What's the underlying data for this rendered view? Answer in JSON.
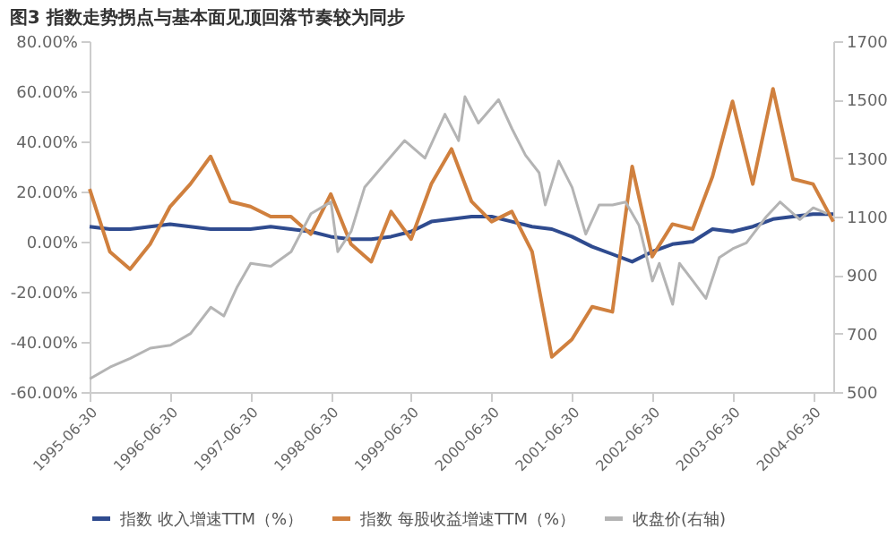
{
  "chart_data": {
    "type": "line",
    "title": "图3 指数走势拐点与基本面见顶回落节奏较为同步",
    "x": [
      "1995-06-30",
      "1995-09-30",
      "1995-12-31",
      "1996-03-31",
      "1996-06-30",
      "1996-09-30",
      "1996-12-31",
      "1997-03-31",
      "1997-06-30",
      "1997-09-30",
      "1997-12-31",
      "1998-03-31",
      "1998-06-30",
      "1998-09-30",
      "1998-12-31",
      "1999-03-31",
      "1999-06-30",
      "1999-09-30",
      "1999-12-31",
      "2000-03-31",
      "2000-06-30",
      "2000-09-30",
      "2000-12-31",
      "2001-03-31",
      "2001-06-30",
      "2001-09-30",
      "2001-12-31",
      "2002-03-31",
      "2002-06-30",
      "2002-09-30",
      "2002-12-31",
      "2003-03-31",
      "2003-06-30",
      "2003-09-30",
      "2003-12-31",
      "2004-03-31",
      "2004-06-30",
      "2004-09-30"
    ],
    "series": [
      {
        "name": "指数 收入增速TTM（%）",
        "color": "#2f4b8f",
        "values": [
          6,
          5,
          5,
          6,
          7,
          6,
          5,
          5,
          5,
          6,
          5,
          4,
          2,
          1,
          1,
          2,
          4,
          8,
          9,
          10,
          10,
          8,
          6,
          5,
          2,
          -2,
          -5,
          -8,
          -4,
          -1,
          0,
          5,
          4,
          6,
          9,
          10,
          11,
          11
        ]
      },
      {
        "name": "指数 每股收益增速TTM（%）",
        "color": "#d0803e",
        "values": [
          21,
          -4,
          -11,
          -1,
          14,
          23,
          34,
          16,
          14,
          10,
          10,
          3,
          19,
          -1,
          -8,
          12,
          1,
          23,
          37,
          16,
          8,
          12,
          -4,
          -46,
          -39,
          -26,
          -28,
          30,
          -6,
          7,
          5,
          26,
          56,
          23,
          61,
          25,
          23,
          8
        ]
      },
      {
        "name": "收盘价(右轴)",
        "color": "#b4b4b4",
        "axis": "y2",
        "x": [
          "1995-07",
          "1995-10",
          "1996-01",
          "1996-04",
          "1996-07",
          "1996-10",
          "1997-01",
          "1997-03",
          "1997-05",
          "1997-07",
          "1997-10",
          "1998-01",
          "1998-04",
          "1998-07",
          "1998-08",
          "1998-10",
          "1998-12",
          "1999-03",
          "1999-06",
          "1999-09",
          "1999-12",
          "2000-02",
          "2000-03",
          "2000-05",
          "2000-08",
          "2000-10",
          "2000-12",
          "2001-02",
          "2001-03",
          "2001-05",
          "2001-07",
          "2001-09",
          "2001-11",
          "2002-01",
          "2002-03",
          "2002-05",
          "2002-07",
          "2002-08",
          "2002-10",
          "2002-11",
          "2003-01",
          "2003-03",
          "2003-05",
          "2003-07",
          "2003-09",
          "2003-12",
          "2004-02",
          "2004-05",
          "2004-07",
          "2004-09"
        ],
        "values": [
          545,
          585,
          615,
          650,
          660,
          700,
          790,
          760,
          860,
          940,
          930,
          980,
          1110,
          1150,
          980,
          1050,
          1200,
          1280,
          1360,
          1300,
          1450,
          1360,
          1510,
          1420,
          1500,
          1400,
          1310,
          1250,
          1140,
          1290,
          1200,
          1040,
          1140,
          1140,
          1150,
          1070,
          880,
          940,
          800,
          940,
          880,
          820,
          960,
          990,
          1010,
          1100,
          1150,
          1090,
          1130,
          1110
        ]
      }
    ],
    "xlim": [
      "1995-06-30",
      "2004-09-30"
    ],
    "xticks": [
      "1995-06-30",
      "1996-06-30",
      "1997-06-30",
      "1998-06-30",
      "1999-06-30",
      "2000-06-30",
      "2001-06-30",
      "2002-06-30",
      "2003-06-30",
      "2004-06-30"
    ],
    "ylim": [
      -60,
      80
    ],
    "yticks": [
      {
        "value": -60,
        "label": "-60.00%"
      },
      {
        "value": -40,
        "label": "-40.00%"
      },
      {
        "value": -20,
        "label": "-20.00%"
      },
      {
        "value": 0,
        "label": "0.00%"
      },
      {
        "value": 20,
        "label": "20.00%"
      },
      {
        "value": 40,
        "label": "40.00%"
      },
      {
        "value": 60,
        "label": "60.00%"
      },
      {
        "value": 80,
        "label": "80.00%"
      }
    ],
    "y2lim": [
      500,
      1700
    ],
    "y2ticks": [
      500,
      700,
      900,
      1100,
      1300,
      1500,
      1700
    ],
    "grid": false,
    "legend": "bottom",
    "marker": "none",
    "line_style": "solid"
  }
}
